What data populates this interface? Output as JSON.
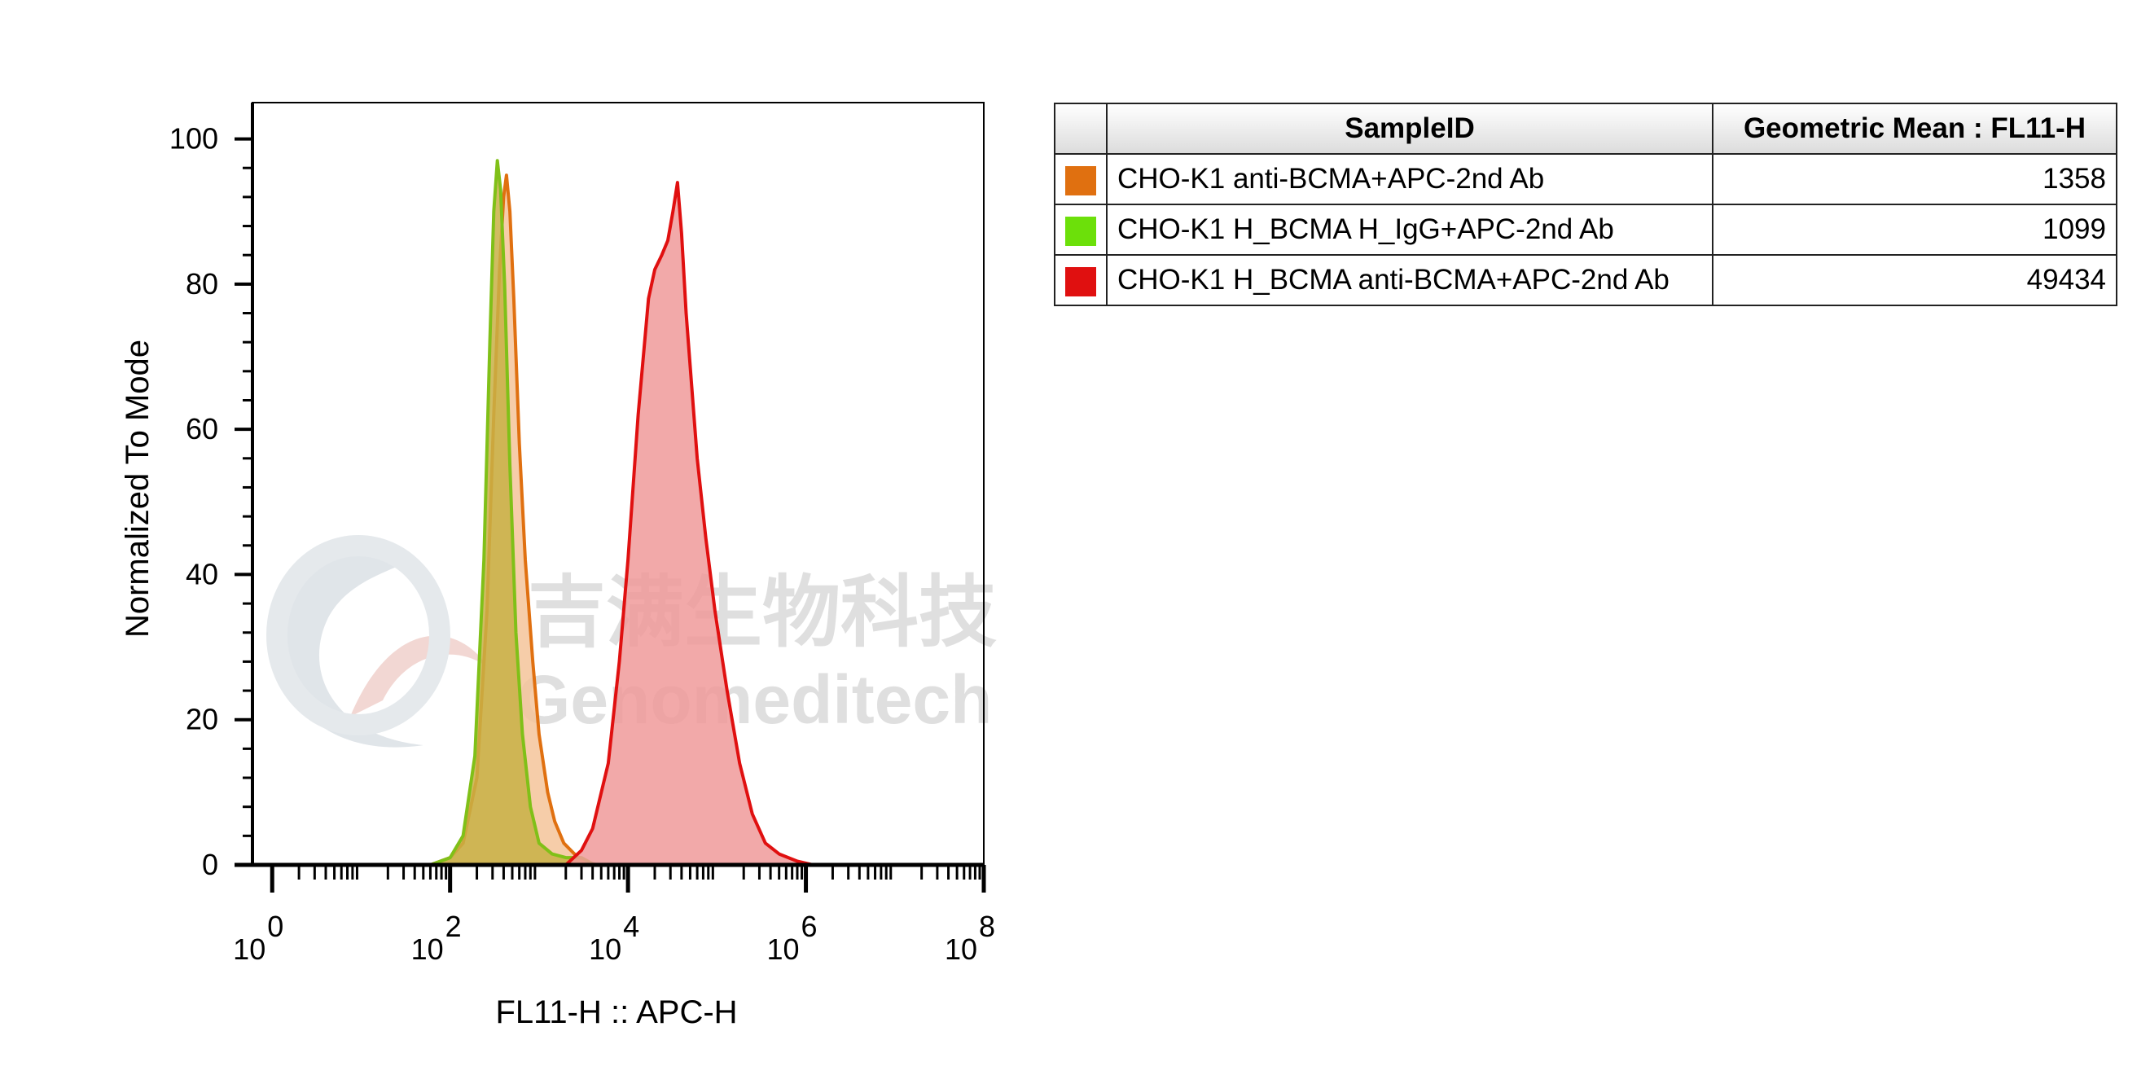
{
  "chart_data": {
    "type": "area",
    "xlabel": "FL11-H :: APC-H",
    "ylabel": "Normalized To Mode",
    "x_scale": "log",
    "xlim": [
      0.6,
      100000000
    ],
    "ylim": [
      0,
      105
    ],
    "x_ticks": [
      {
        "base": "10",
        "exp": "0",
        "value": 1
      },
      {
        "base": "10",
        "exp": "2",
        "value": 100
      },
      {
        "base": "10",
        "exp": "4",
        "value": 10000
      },
      {
        "base": "10",
        "exp": "6",
        "value": 1000000
      },
      {
        "base": "10",
        "exp": "8",
        "value": 100000000
      }
    ],
    "y_ticks": [
      "0",
      "20",
      "40",
      "60",
      "80",
      "100"
    ],
    "series": [
      {
        "name": "CHO-K1 anti-BCMA+APC-2nd Ab",
        "color": "#e07010",
        "fill": "#f5c49a",
        "points": [
          [
            1,
            0
          ],
          [
            60,
            0
          ],
          [
            100,
            1
          ],
          [
            140,
            3
          ],
          [
            200,
            12
          ],
          [
            260,
            35
          ],
          [
            310,
            62
          ],
          [
            360,
            82
          ],
          [
            400,
            92
          ],
          [
            430,
            95
          ],
          [
            470,
            90
          ],
          [
            520,
            78
          ],
          [
            600,
            58
          ],
          [
            700,
            42
          ],
          [
            850,
            28
          ],
          [
            1000,
            18
          ],
          [
            1250,
            10
          ],
          [
            1500,
            6
          ],
          [
            1900,
            3
          ],
          [
            2500,
            1.5
          ],
          [
            3200,
            0.5
          ],
          [
            4500,
            0
          ],
          [
            100000000,
            0
          ]
        ]
      },
      {
        "name": "CHO-K1 H_BCMA H_IgG+APC-2nd Ab",
        "color": "#80c018",
        "fill": "#c8b045",
        "points": [
          [
            1,
            0
          ],
          [
            60,
            0
          ],
          [
            100,
            1
          ],
          [
            140,
            4
          ],
          [
            190,
            15
          ],
          [
            240,
            42
          ],
          [
            280,
            72
          ],
          [
            310,
            90
          ],
          [
            340,
            97
          ],
          [
            370,
            93
          ],
          [
            410,
            80
          ],
          [
            470,
            55
          ],
          [
            550,
            32
          ],
          [
            650,
            18
          ],
          [
            800,
            8
          ],
          [
            1000,
            3
          ],
          [
            1400,
            1.5
          ],
          [
            2000,
            1
          ],
          [
            3000,
            1
          ],
          [
            4200,
            0
          ],
          [
            100000000,
            0
          ]
        ]
      },
      {
        "name": "CHO-K1 H_BCMA anti-BCMA+APC-2nd Ab",
        "color": "#e01010",
        "fill": "#f09a9a",
        "points": [
          [
            1,
            0
          ],
          [
            2000,
            0
          ],
          [
            3000,
            2
          ],
          [
            4000,
            5
          ],
          [
            6000,
            14
          ],
          [
            8000,
            28
          ],
          [
            10000,
            42
          ],
          [
            13000,
            62
          ],
          [
            17000,
            78
          ],
          [
            20000,
            82
          ],
          [
            24000,
            84
          ],
          [
            28000,
            86
          ],
          [
            32000,
            90
          ],
          [
            36000,
            94
          ],
          [
            40000,
            87
          ],
          [
            45000,
            76
          ],
          [
            52000,
            66
          ],
          [
            60000,
            56
          ],
          [
            75000,
            45
          ],
          [
            95000,
            35
          ],
          [
            130000,
            24
          ],
          [
            180000,
            14
          ],
          [
            250000,
            7
          ],
          [
            350000,
            3
          ],
          [
            500000,
            1.5
          ],
          [
            800000,
            0.5
          ],
          [
            1200000,
            0
          ],
          [
            100000000,
            0
          ]
        ]
      }
    ]
  },
  "watermark": {
    "chinese": "吉满生物科技",
    "english": "Genomeditech"
  },
  "legend_table": {
    "headers": {
      "sample_id": "SampleID",
      "geo_mean": "Geometric Mean : FL11-H"
    },
    "rows": [
      {
        "color": "#e07010",
        "sample": "CHO-K1 anti-BCMA+APC-2nd Ab",
        "value": "1358"
      },
      {
        "color": "#6ce00a",
        "sample": "CHO-K1 H_BCMA H_IgG+APC-2nd Ab",
        "value": "1099"
      },
      {
        "color": "#e01010",
        "sample": "CHO-K1 H_BCMA anti-BCMA+APC-2nd Ab",
        "value": "49434"
      }
    ]
  }
}
